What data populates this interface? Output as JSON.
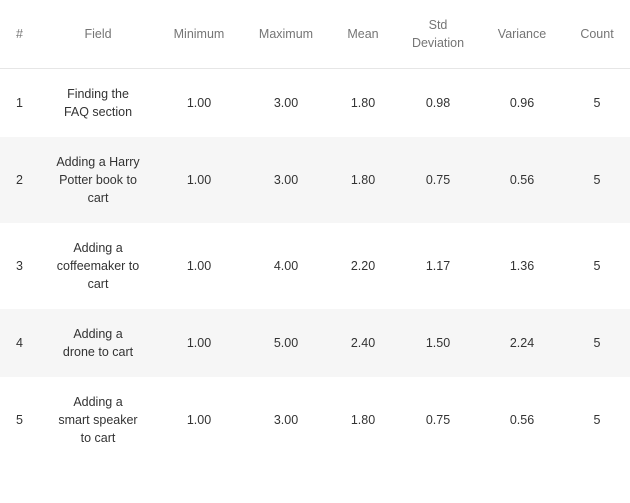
{
  "table": {
    "headers": {
      "index": "#",
      "field": "Field",
      "minimum": "Minimum",
      "maximum": "Maximum",
      "mean": "Mean",
      "std_line1": "Std",
      "std_line2": "Deviation",
      "variance": "Variance",
      "count": "Count"
    },
    "rows": [
      {
        "index": "1",
        "field": "Finding the FAQ section",
        "minimum": "1.00",
        "maximum": "3.00",
        "mean": "1.80",
        "std": "0.98",
        "variance": "0.96",
        "count": "5"
      },
      {
        "index": "2",
        "field": "Adding a Harry Potter book to cart",
        "minimum": "1.00",
        "maximum": "3.00",
        "mean": "1.80",
        "std": "0.75",
        "variance": "0.56",
        "count": "5"
      },
      {
        "index": "3",
        "field": "Adding a coffeemaker to cart",
        "minimum": "1.00",
        "maximum": "4.00",
        "mean": "2.20",
        "std": "1.17",
        "variance": "1.36",
        "count": "5"
      },
      {
        "index": "4",
        "field": "Adding a drone to cart",
        "minimum": "1.00",
        "maximum": "5.00",
        "mean": "2.40",
        "std": "1.50",
        "variance": "2.24",
        "count": "5"
      },
      {
        "index": "5",
        "field": "Adding a smart speaker to cart",
        "minimum": "1.00",
        "maximum": "3.00",
        "mean": "1.80",
        "std": "0.75",
        "variance": "0.56",
        "count": "5"
      }
    ]
  }
}
